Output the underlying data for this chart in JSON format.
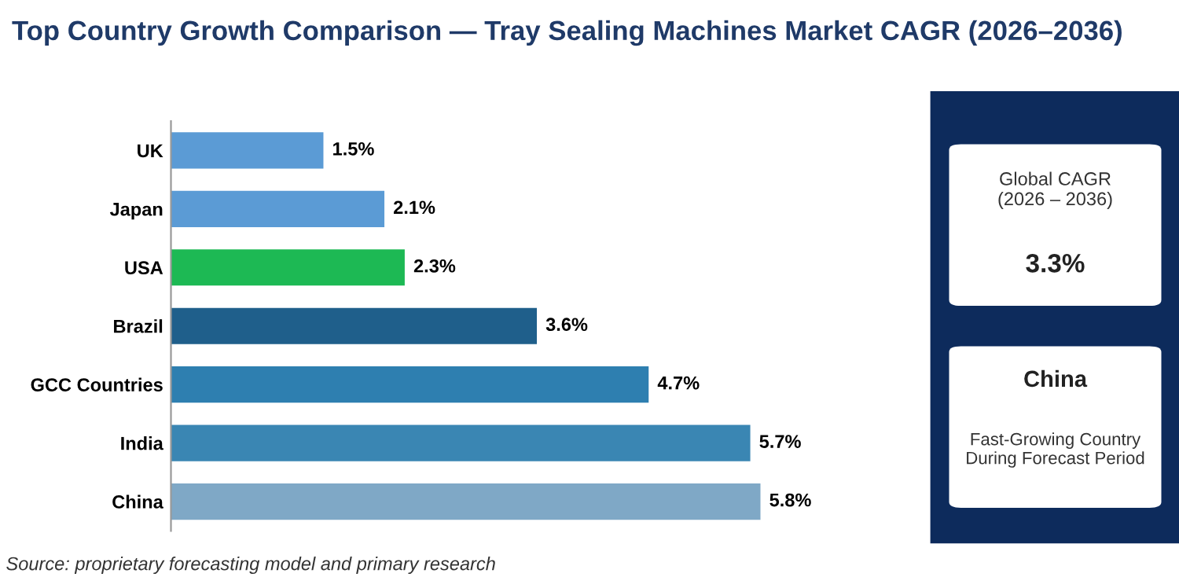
{
  "chart_data": {
    "type": "bar",
    "orientation": "horizontal",
    "title": "Top Country Growth Comparison — Tray Sealing Machines Market CAGR (2026–2036)",
    "categories": [
      "UK",
      "Japan",
      "USA",
      "Brazil",
      "GCC Countries",
      "India",
      "China"
    ],
    "values": [
      1.5,
      2.1,
      2.3,
      3.6,
      4.7,
      5.7,
      5.8
    ],
    "colors": [
      "#5b9bd5",
      "#5b9bd5",
      "#1db954",
      "#1f5f8b",
      "#2e7fb0",
      "#3a86b3",
      "#7fa8c6"
    ],
    "value_labels": [
      "1.5%",
      "2.1%",
      "2.3%",
      "3.6%",
      "4.7%",
      "5.7%",
      "5.8%"
    ],
    "grid": false,
    "legend": false,
    "annotations": [
      "Source: proprietary forecasting model and primary research",
      "Global CAGR\n(2026 – 2036)",
      "3.3%",
      "China",
      "Fast-Growing Country\nDuring Forecast Period"
    ]
  }
}
